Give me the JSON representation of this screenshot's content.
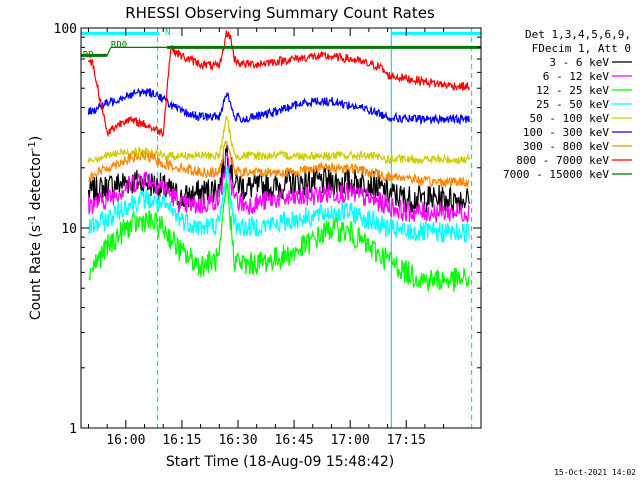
{
  "footer_date": "15-Oct-2021 14:02",
  "chart_data": {
    "type": "line",
    "title": "RHESSI Observing Summary Count Rates",
    "xlabel": "Start Time (18-Aug-09 15:48:42)",
    "ylabel_main": "Count Rate (s",
    "ylabel_sup": "-1",
    "ylabel_mid": " detector",
    "ylabel_sup2": "-1",
    "ylabel_end": ")",
    "yscale": "log",
    "ylim": [
      1,
      100
    ],
    "xlim_minutes_after_1600": [
      -12.0,
      95.0
    ],
    "x_tick_labels": [
      "16:00",
      "16:15",
      "16:30",
      "16:45",
      "17:00",
      "17:15"
    ],
    "x_tick_minutes": [
      0,
      15,
      30,
      45,
      60,
      75
    ],
    "y_tick_labels": [
      "1",
      "10",
      "100"
    ],
    "y_tick_values": [
      1,
      10,
      100
    ],
    "legend_header": [
      "Det 1,3,4,5,6,9,",
      "FDecim 1, Att 0"
    ],
    "legend_placement": "right",
    "series": [
      {
        "name": "3 - 6 keV",
        "color": "#000000",
        "x": [
          -10,
          -5,
          0,
          5,
          10,
          15,
          20,
          25,
          27,
          29,
          32,
          40,
          45,
          55,
          60,
          65,
          70,
          75,
          80,
          85,
          90,
          92
        ],
        "y": [
          15,
          16,
          17,
          17,
          16,
          14,
          15,
          16,
          25,
          17,
          16,
          16,
          17,
          17,
          17,
          17,
          15,
          14,
          14,
          14,
          14,
          14
        ]
      },
      {
        "name": "6 - 12 keV",
        "color": "#ff00ff",
        "x": [
          -10,
          -5,
          0,
          5,
          10,
          15,
          20,
          25,
          27,
          29,
          32,
          40,
          45,
          55,
          60,
          65,
          70,
          75,
          80,
          85,
          90,
          92
        ],
        "y": [
          13,
          14,
          16,
          18,
          16,
          13,
          13,
          14,
          22,
          14,
          13,
          14,
          14,
          15,
          15,
          14,
          13,
          12,
          12,
          12,
          12,
          12
        ]
      },
      {
        "name": "12 - 25 keV",
        "color": "#00ff00",
        "x": [
          -10,
          -5,
          0,
          5,
          10,
          15,
          20,
          25,
          27,
          29,
          32,
          40,
          45,
          55,
          60,
          65,
          70,
          75,
          80,
          85,
          90,
          92
        ],
        "y": [
          6,
          8,
          10,
          11,
          10,
          7.5,
          6.5,
          7,
          17,
          7,
          6.5,
          7,
          7.5,
          10,
          9.5,
          8,
          7,
          6,
          5.5,
          5.5,
          5.5,
          5.5
        ]
      },
      {
        "name": "25 - 50 keV",
        "color": "#00ffff",
        "x": [
          -10,
          -5,
          0,
          5,
          10,
          15,
          20,
          25,
          27,
          29,
          32,
          40,
          45,
          55,
          60,
          65,
          70,
          75,
          80,
          85,
          90,
          92
        ],
        "y": [
          10,
          11,
          13,
          14,
          13,
          11,
          10,
          10.5,
          20,
          10.5,
          10,
          10.5,
          11,
          12,
          12,
          11,
          10,
          9.5,
          9.5,
          9.5,
          9.5,
          9.5
        ]
      },
      {
        "name": "50 - 100 keV",
        "color": "#cccc00",
        "x": [
          -10,
          -5,
          0,
          5,
          10,
          15,
          20,
          25,
          27,
          29,
          32,
          40,
          45,
          55,
          60,
          65,
          70,
          75,
          80,
          85,
          90,
          92
        ],
        "y": [
          22,
          23,
          24,
          24,
          23,
          23,
          23,
          23,
          36,
          23,
          23,
          23,
          23,
          23,
          23,
          23,
          22,
          22,
          22,
          22,
          22,
          22
        ]
      },
      {
        "name": "100 - 300 keV",
        "color": "#0000ff",
        "x": [
          -10,
          -5,
          0,
          5,
          8,
          10,
          15,
          20,
          25,
          27,
          29,
          32,
          40,
          45,
          50,
          55,
          60,
          65,
          70,
          75,
          80,
          85,
          90,
          92
        ],
        "y": [
          38,
          42,
          46,
          48,
          47,
          44,
          38,
          36,
          36,
          48,
          36,
          35,
          38,
          41,
          43,
          43,
          41,
          39,
          36,
          35,
          35,
          35,
          35,
          35
        ]
      },
      {
        "name": "300 - 800 keV",
        "color": "#ff8800",
        "x": [
          -10,
          -5,
          0,
          5,
          8,
          10,
          15,
          20,
          25,
          27,
          29,
          32,
          40,
          45,
          50,
          55,
          60,
          65,
          70,
          75,
          80,
          85,
          90,
          92
        ],
        "y": [
          18,
          20,
          22,
          23,
          22,
          21,
          20,
          19,
          19,
          28,
          19,
          19,
          19,
          19,
          20,
          20,
          20,
          19,
          18,
          18,
          17,
          17,
          17,
          17
        ]
      },
      {
        "name": "800 - 7000 keV",
        "color": "#ff0000",
        "x": [
          -10,
          -9,
          -5,
          0,
          5,
          8,
          10,
          12,
          15,
          20,
          25,
          27,
          28,
          29,
          31,
          33,
          35,
          40,
          45,
          50,
          55,
          60,
          65,
          68,
          70,
          75,
          80,
          85,
          90,
          92
        ],
        "y": [
          68,
          68,
          30,
          35,
          33,
          31,
          30,
          80,
          72,
          66,
          64,
          95,
          90,
          70,
          66,
          66,
          66,
          68,
          70,
          72,
          72,
          70,
          66,
          64,
          58,
          56,
          54,
          52,
          51,
          51
        ]
      },
      {
        "name": "7000 - 15000 keV",
        "color": "#007700",
        "x": [
          -12,
          -5,
          -4,
          10,
          11,
          25,
          40,
          55,
          70,
          85,
          92
        ],
        "y": [
          73,
          73,
          80,
          80,
          80,
          80,
          80,
          80,
          80,
          80,
          80
        ]
      }
    ],
    "annotations": [
      {
        "text": "RD0",
        "x_min": -4,
        "y": 80
      },
      {
        "text": "RD",
        "x_min": -11.5,
        "y": 71
      },
      {
        "text": "N",
        "x_min": 10.5,
        "y": 92
      }
    ],
    "flag_bars": [
      {
        "color": "#00ffff",
        "x_start": -12,
        "x_end": 9,
        "y": 94
      },
      {
        "color": "#00ffff",
        "x_start": 71,
        "x_end": 95,
        "y": 94
      },
      {
        "color": "#007700",
        "x_start": -12,
        "x_end": -5,
        "y": 73
      },
      {
        "color": "#007700",
        "x_start": 11,
        "x_end": 95,
        "y": 80
      }
    ],
    "vertical_lines": [
      {
        "x_min": -12,
        "style": "solid",
        "color": "#00cccc"
      },
      {
        "x_min": 8.5,
        "style": "dashed",
        "color": "#00cccc"
      },
      {
        "x_min": 71,
        "style": "solid",
        "color": "#00cccc"
      },
      {
        "x_min": 92.5,
        "style": "dashed",
        "color": "#00cccc"
      }
    ]
  }
}
